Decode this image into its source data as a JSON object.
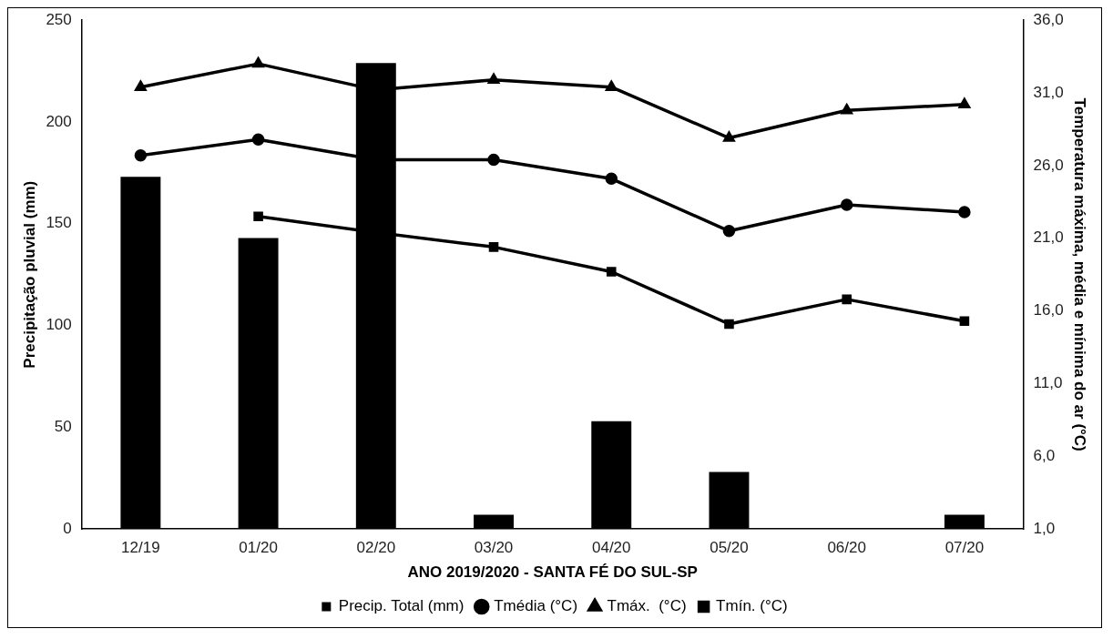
{
  "chart_data": {
    "type": "bar",
    "xlabel": "ANO 2019/2020 - SANTA FÉ DO SUL-SP",
    "ylabel": "Precipitação pluvial (mm)",
    "y2label": "Temperatura máxima, média e mínima do ar (°C)",
    "categories": [
      "12/19",
      "01/20",
      "02/20",
      "03/20",
      "04/20",
      "05/20",
      "06/20",
      "07/20"
    ],
    "series": [
      {
        "name": "Precip. Total (mm)",
        "type": "bar",
        "color": "#000000",
        "values": [
          173,
          143,
          229,
          7,
          53,
          28,
          0,
          7
        ]
      },
      {
        "name": "Tmédia (°C)",
        "type": "line",
        "axis": "y2",
        "marker": "circle",
        "color": "#000000",
        "values": [
          26.7,
          27.8,
          26.4,
          26.4,
          25.1,
          21.5,
          23.3,
          22.8
        ]
      },
      {
        "name": "Tmáx.  (°C)",
        "type": "line",
        "axis": "y2",
        "marker": "triangle",
        "color": "#000000",
        "values": [
          31.4,
          33.0,
          31.2,
          31.9,
          31.4,
          27.9,
          29.8,
          30.2
        ]
      },
      {
        "name": "Tmín. (°C)",
        "type": "line",
        "axis": "y2",
        "marker": "square",
        "color": "#000000",
        "values": [
          null,
          22.5,
          21.4,
          20.4,
          18.7,
          15.1,
          16.8,
          15.3
        ]
      }
    ],
    "ylim": [
      0,
      250
    ],
    "yticks": [
      0,
      50,
      100,
      150,
      200,
      250
    ],
    "y2lim": [
      1,
      36
    ],
    "y2ticks": [
      {
        "value": 1,
        "label": "1,0"
      },
      {
        "value": 6,
        "label": "6,0"
      },
      {
        "value": 11,
        "label": "11,0"
      },
      {
        "value": 16,
        "label": "16,0"
      },
      {
        "value": 21,
        "label": "21,0"
      },
      {
        "value": 26,
        "label": "26,0"
      },
      {
        "value": 31,
        "label": "31,0"
      },
      {
        "value": 36,
        "label": "36,0"
      }
    ],
    "grid": false,
    "legend": "bottom"
  }
}
